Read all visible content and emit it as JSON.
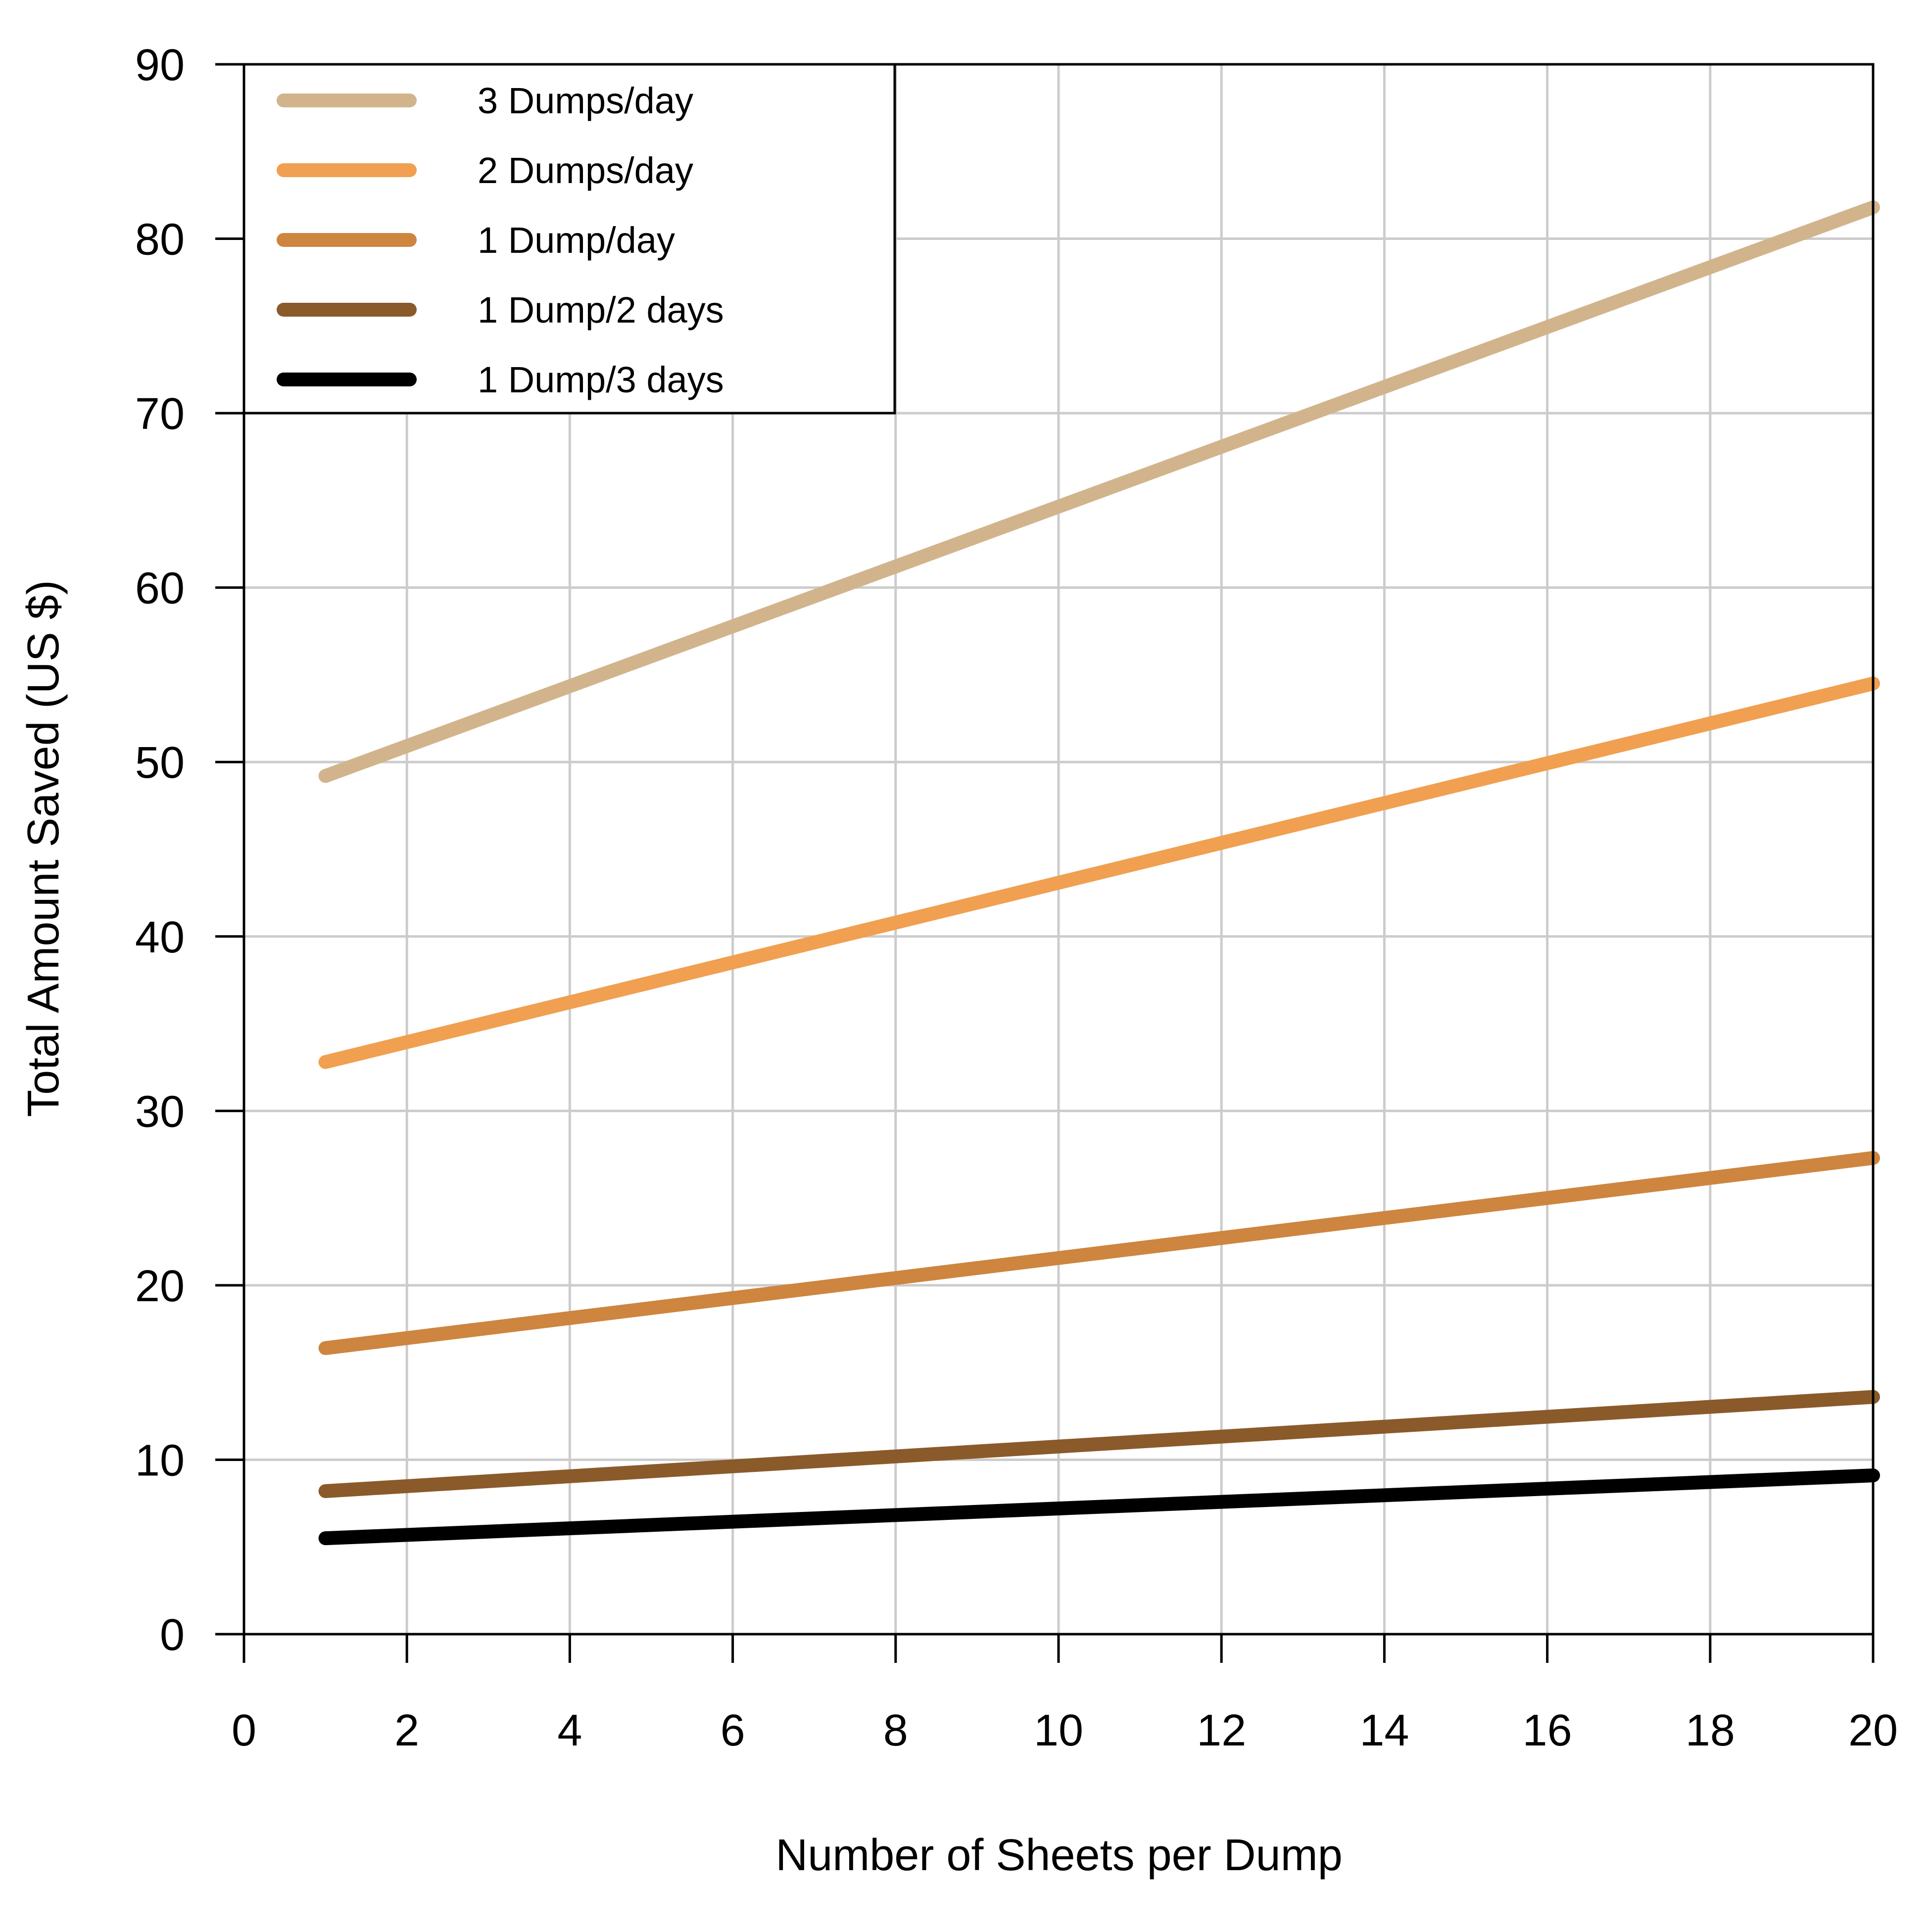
{
  "chart_data": {
    "type": "line",
    "title": "",
    "xlabel": "Number of Sheets per Dump",
    "ylabel": "Total Amount Saved (US $)",
    "xlim": [
      0,
      20
    ],
    "ylim": [
      0,
      90
    ],
    "xticks": [
      0,
      2,
      4,
      6,
      8,
      10,
      12,
      14,
      16,
      18,
      20
    ],
    "yticks": [
      0,
      10,
      20,
      30,
      40,
      50,
      60,
      70,
      80,
      90
    ],
    "grid": true,
    "legend_position": "top-left",
    "series": [
      {
        "name": "3 Dumps/day",
        "color": "#D2B48C",
        "x": [
          1,
          20
        ],
        "y": [
          49.2,
          81.8
        ]
      },
      {
        "name": "2 Dumps/day",
        "color": "#F0A050",
        "x": [
          1,
          20
        ],
        "y": [
          32.8,
          54.5
        ]
      },
      {
        "name": "1 Dump/day",
        "color": "#CD853F",
        "x": [
          1,
          20
        ],
        "y": [
          16.4,
          27.3
        ]
      },
      {
        "name": "1 Dump/2 days",
        "color": "#8B5A2B",
        "x": [
          1,
          20
        ],
        "y": [
          8.2,
          13.6
        ]
      },
      {
        "name": "1 Dump/3 days",
        "color": "#000000",
        "x": [
          1,
          20
        ],
        "y": [
          5.5,
          9.1
        ]
      }
    ]
  }
}
